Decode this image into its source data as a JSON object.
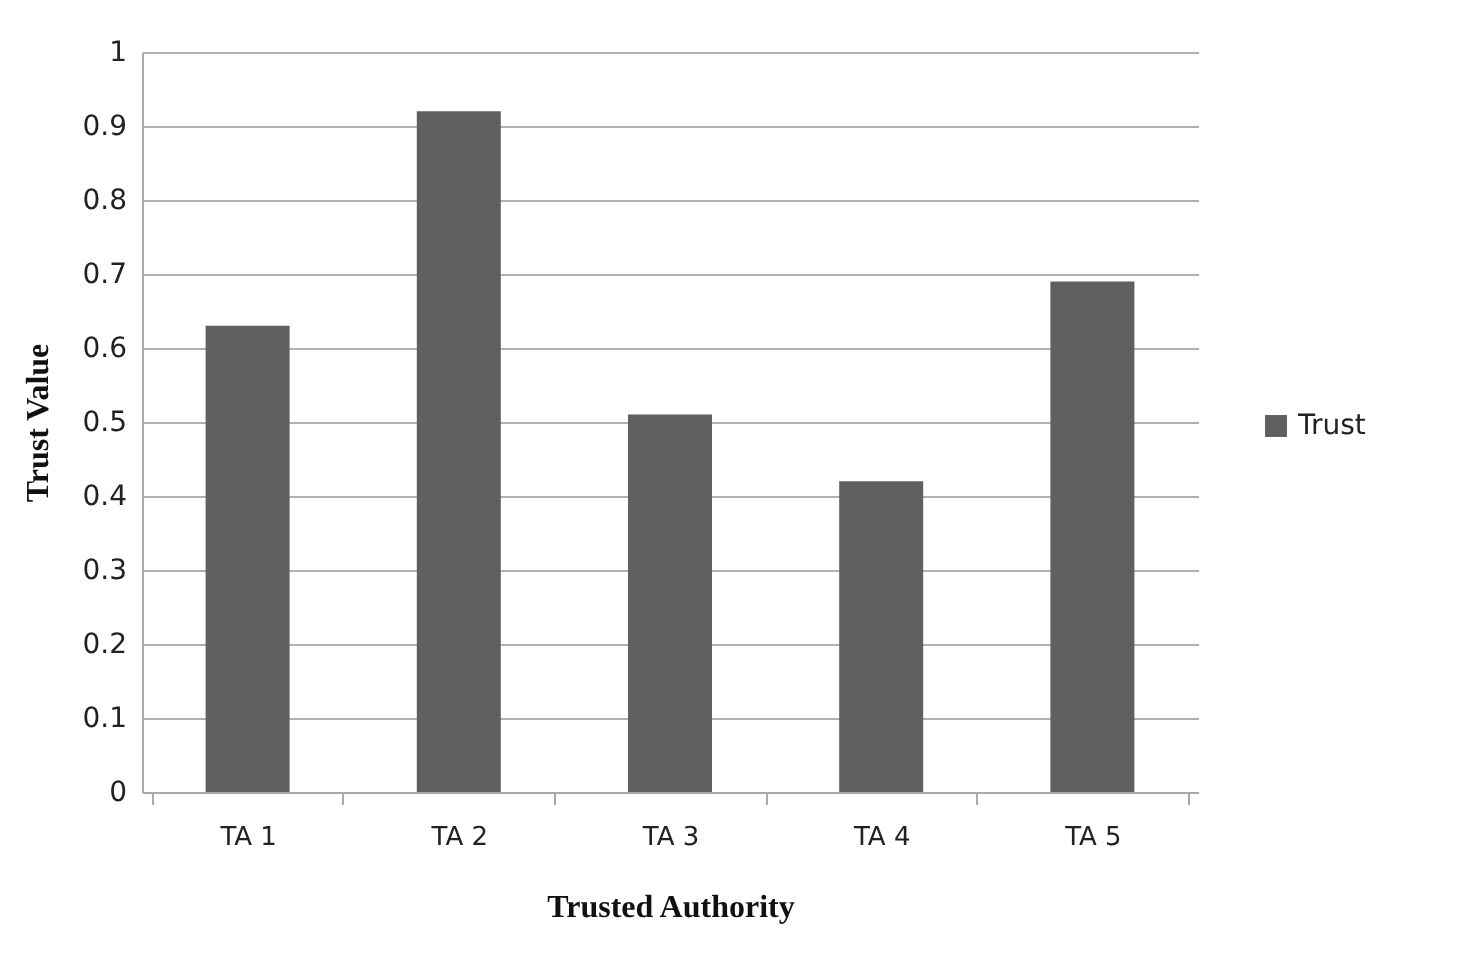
{
  "chart_data": {
    "type": "bar",
    "xlabel": "Trusted Authority",
    "ylabel": "Trust Value",
    "categories": [
      "TA 1",
      "TA 2",
      "TA 3",
      "TA 4",
      "TA 5"
    ],
    "series": [
      {
        "name": "Trust",
        "color": "#606060",
        "values": [
          0.63,
          0.92,
          0.51,
          0.42,
          0.69
        ]
      }
    ],
    "ylim": [
      0,
      1
    ],
    "yticks": [
      0,
      0.1,
      0.2,
      0.3,
      0.4,
      0.5,
      0.6,
      0.7,
      0.8,
      0.9,
      1
    ],
    "grid": "y",
    "legend": "right"
  }
}
